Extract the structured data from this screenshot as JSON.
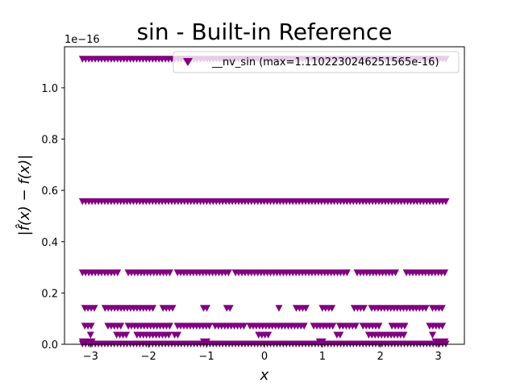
{
  "chart_data": {
    "type": "scatter",
    "title": "sin - Built-in Reference",
    "xlabel": "x",
    "ylabel": "|f̂(x) − f(x)|",
    "y_offset_label": "1e−16",
    "xlim": [
      -3.45,
      3.45
    ],
    "ylim": [
      0.0,
      1.16
    ],
    "xticks": [
      -3,
      -2,
      -1,
      0,
      1,
      2,
      3
    ],
    "xtick_labels": [
      "−3",
      "−2",
      "−1",
      "0",
      "1",
      "2",
      "3"
    ],
    "yticks": [
      0.0,
      0.2,
      0.4,
      0.6,
      0.8,
      1.0
    ],
    "ytick_labels": [
      "0.0",
      "0.2",
      "0.4",
      "0.6",
      "0.8",
      "1.0"
    ],
    "grid": false,
    "legend_position": "top-right",
    "marker": "triangle-down",
    "series": [
      {
        "name": "__nv_sin (max=1.1102230246251565e-16)",
        "color": "#800080",
        "levels": [
          {
            "y": 1.1102,
            "x_ranges": [
              [
                -3.14,
                3.14
              ]
            ]
          },
          {
            "y": 0.5551,
            "x_ranges": [
              [
                -3.14,
                3.14
              ]
            ]
          },
          {
            "y": 0.2776,
            "x_ranges": [
              [
                -3.14,
                -2.5
              ],
              [
                -2.35,
                -1.6
              ],
              [
                -1.5,
                -0.6
              ],
              [
                -0.5,
                0.0
              ],
              [
                0.05,
                0.55
              ],
              [
                0.6,
                1.45
              ],
              [
                1.6,
                2.3
              ],
              [
                2.45,
                3.14
              ]
            ]
          },
          {
            "y": 0.1388,
            "x_ranges": [
              [
                -3.1,
                -2.9
              ],
              [
                -2.75,
                -1.9
              ],
              [
                -1.75,
                -1.55
              ],
              [
                -1.05,
                -0.95
              ],
              [
                -0.65,
                -0.55
              ],
              [
                0.25,
                0.25
              ],
              [
                0.55,
                0.75
              ],
              [
                1.0,
                1.2
              ],
              [
                1.55,
                1.75
              ],
              [
                1.85,
                2.8
              ],
              [
                2.9,
                3.1
              ]
            ]
          },
          {
            "y": 0.0694,
            "x_ranges": [
              [
                -3.1,
                -2.95
              ],
              [
                -2.7,
                -2.45
              ],
              [
                -2.35,
                -1.6
              ],
              [
                -1.5,
                -0.95
              ],
              [
                -0.85,
                -0.35
              ],
              [
                -0.25,
                0.7
              ],
              [
                0.85,
                1.2
              ],
              [
                1.3,
                1.6
              ],
              [
                1.7,
                2.0
              ],
              [
                2.2,
                2.45
              ],
              [
                2.85,
                3.1
              ]
            ]
          },
          {
            "y": 0.0347,
            "x_ranges": [
              [
                -3.0,
                -2.95
              ],
              [
                -2.55,
                -2.35
              ],
              [
                -2.2,
                -1.6
              ],
              [
                -1.55,
                -1.45
              ],
              [
                -0.1,
                0.1
              ],
              [
                1.25,
                1.35
              ],
              [
                1.8,
                2.45
              ],
              [
                2.9,
                2.95
              ]
            ]
          },
          {
            "y": 0.0,
            "x_ranges": [
              [
                -3.14,
                3.14
              ]
            ]
          },
          {
            "y": 0.0087,
            "x_ranges": [
              [
                -3.14,
                -2.95
              ],
              [
                -1.05,
                -0.95
              ],
              [
                0.95,
                1.05
              ],
              [
                2.95,
                3.14
              ]
            ]
          }
        ]
      }
    ]
  }
}
